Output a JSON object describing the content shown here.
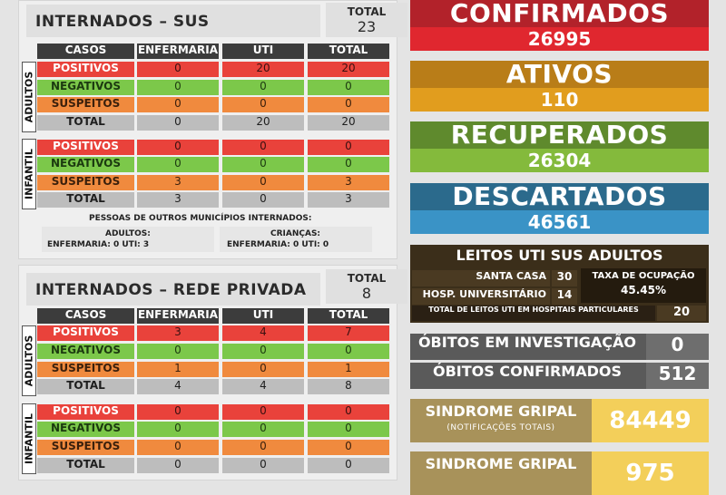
{
  "sus": {
    "title": "INTERNADOS – SUS",
    "total_label": "TOTAL",
    "total_value": "23",
    "headers": [
      "CASOS",
      "ENFERMARIA",
      "UTI",
      "TOTAL"
    ],
    "adultos_label": "ADULTOS",
    "adultos": [
      [
        "POSITIVOS",
        "0",
        "20",
        "20"
      ],
      [
        "NEGATIVOS",
        "0",
        "0",
        "0"
      ],
      [
        "SUSPEITOS",
        "0",
        "0",
        "0"
      ],
      [
        "TOTAL",
        "0",
        "20",
        "20"
      ]
    ],
    "infantil_label": "INFANTIL",
    "infantil": [
      [
        "POSITIVOS",
        "0",
        "0",
        "0"
      ],
      [
        "NEGATIVOS",
        "0",
        "0",
        "0"
      ],
      [
        "SUSPEITOS",
        "3",
        "0",
        "3"
      ],
      [
        "TOTAL",
        "3",
        "0",
        "3"
      ]
    ],
    "outros_title": "PESSOAS  DE OUTROS MUNICÍPIOS INTERNADOS:",
    "adultos_note": "ADULTOS:",
    "adultos_detail": "ENFERMARIA:   0      UTI: 3",
    "criancas_note": "CRIANÇAS:",
    "criancas_detail": "ENFERMARIA:   0           UTI: 0"
  },
  "privada": {
    "title": "INTERNADOS – REDE PRIVADA",
    "total_label": "TOTAL",
    "total_value": "8",
    "headers": [
      "CASOS",
      "ENFERMARIA",
      "UTI",
      "TOTAL"
    ],
    "adultos_label": "ADULTOS",
    "adultos": [
      [
        "POSITIVOS",
        "3",
        "4",
        "7"
      ],
      [
        "NEGATIVOS",
        "0",
        "0",
        "0"
      ],
      [
        "SUSPEITOS",
        "1",
        "0",
        "1"
      ],
      [
        "TOTAL",
        "4",
        "4",
        "8"
      ]
    ],
    "infantil_label": "INFANTIL",
    "infantil": [
      [
        "POSITIVOS",
        "0",
        "0",
        "0"
      ],
      [
        "NEGATIVOS",
        "0",
        "0",
        "0"
      ],
      [
        "SUSPEITOS",
        "0",
        "0",
        "0"
      ],
      [
        "TOTAL",
        "0",
        "0",
        "0"
      ]
    ]
  },
  "cards": {
    "confirmados": {
      "title": "CONFIRMADOS",
      "value": "26995",
      "color_title": "#b2222a",
      "color_value": "#e0272f"
    },
    "ativos": {
      "title": "ATIVOS",
      "value": "110",
      "color_title": "#b97d18",
      "color_value": "#e19d1e"
    },
    "recuperados": {
      "title": "RECUPERADOS",
      "value": "26304",
      "color_title": "#5f8a2d",
      "color_value": "#84ba3c"
    },
    "descartados": {
      "title": "DESCARTADOS",
      "value": "46561",
      "color_title": "#2b6a8c",
      "color_value": "#3a93c6"
    }
  },
  "leitos": {
    "title": "LEITOS UTI SUS ADULTOS",
    "h1_name": "SANTA CASA",
    "h1_value": "30",
    "h2_name": "HOSP. UNIVERSITÁRIO",
    "h2_value": "14",
    "taxa_label": "TAXA DE OCUPAÇÃO",
    "taxa_value": "45.45%",
    "particulares_label": "TOTAL DE LEITOS UTI EM HOSPITAIS PARTICULARES",
    "particulares_value": "20"
  },
  "obitos": {
    "investigacao_label": "ÓBITOS EM INVESTIGAÇÃO",
    "investigacao_value": "0",
    "confirmados_label": "ÓBITOS CONFIRMADOS",
    "confirmados_value": "512"
  },
  "sindrome": {
    "label": "SINDROME GRIPAL",
    "sub": "(NOTIFICAÇÕES TOTAIS)",
    "value": "84449",
    "label2": "SINDROME GRIPAL",
    "value2": "975"
  }
}
